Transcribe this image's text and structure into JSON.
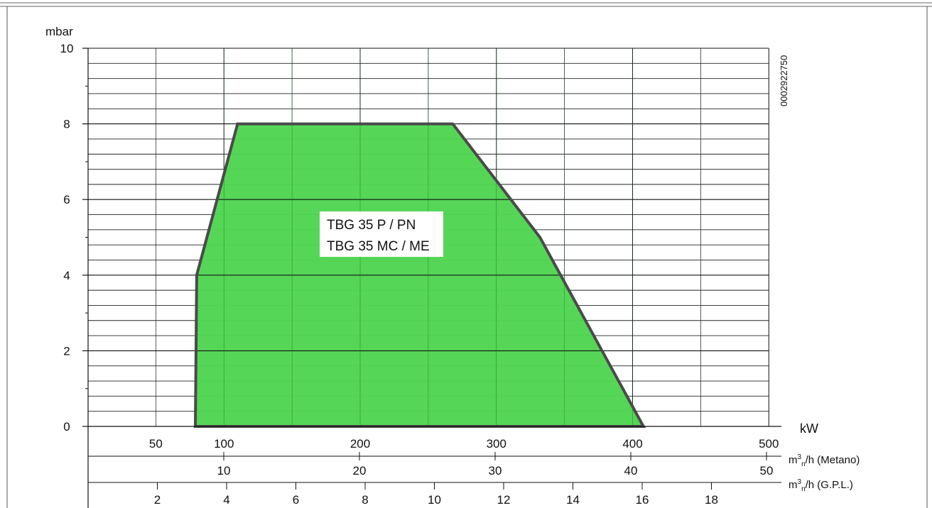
{
  "code_label": "0002922750",
  "chart_data": {
    "type": "area",
    "title": "",
    "ylabel": "mbar",
    "ylim": [
      0,
      10
    ],
    "y_ticks": [
      "0",
      "2",
      "4",
      "6",
      "8",
      "10"
    ],
    "grid": true,
    "kw_axis": {
      "label": "kW",
      "range": [
        0,
        500
      ],
      "ticks": [
        {
          "value": 50,
          "label": "50"
        },
        {
          "value": 100,
          "label": "100"
        },
        {
          "value": 200,
          "label": "200"
        },
        {
          "value": 300,
          "label": "300"
        },
        {
          "value": 400,
          "label": "400"
        },
        {
          "value": 500,
          "label": "500"
        }
      ]
    },
    "metano_axis": {
      "label_main": "m",
      "label_sup": "3",
      "label_sub": "n",
      "label_rest": "/h (Metano)",
      "ticks": [
        {
          "value": 10,
          "label": "10"
        },
        {
          "value": 20,
          "label": "20"
        },
        {
          "value": 30,
          "label": "30"
        },
        {
          "value": 40,
          "label": "40"
        },
        {
          "value": 50,
          "label": "50"
        }
      ]
    },
    "gpl_axis": {
      "label_main": "m",
      "label_sup": "3",
      "label_sub": "n",
      "label_rest": "/h (G.P.L.)",
      "ticks": [
        {
          "value": 2,
          "label": "2"
        },
        {
          "value": 4,
          "label": "4"
        },
        {
          "value": 6,
          "label": "6"
        },
        {
          "value": 8,
          "label": "8"
        },
        {
          "value": 10,
          "label": "10"
        },
        {
          "value": 12,
          "label": "12"
        },
        {
          "value": 14,
          "label": "14"
        },
        {
          "value": 16,
          "label": "16"
        },
        {
          "value": 18,
          "label": "18"
        }
      ]
    },
    "series": [
      {
        "name": "TBG 35 P / PN\nTBG 35 MC / ME",
        "color": "#4fd552",
        "outline_color": "#4a4a4a",
        "points": [
          {
            "x": 79,
            "y": 0
          },
          {
            "x": 80,
            "y": 4
          },
          {
            "x": 110,
            "y": 8
          },
          {
            "x": 268,
            "y": 8
          },
          {
            "x": 332,
            "y": 5
          },
          {
            "x": 408,
            "y": 0
          }
        ]
      }
    ],
    "series_labels": [
      "TBG 35 P / PN",
      "TBG 35 MC / ME"
    ]
  }
}
